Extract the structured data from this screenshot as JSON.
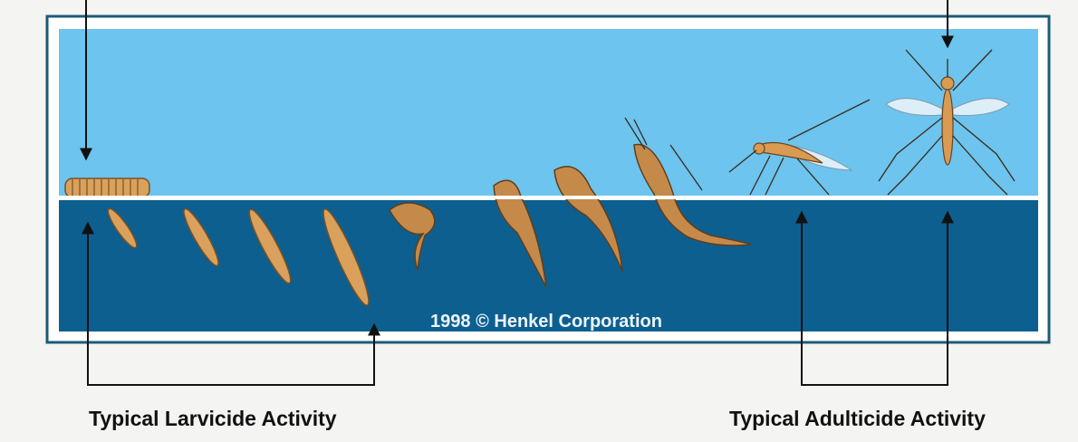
{
  "copyright": "1998 © Henkel Corporation",
  "labels": {
    "larvicide": "Typical Larvicide Activity",
    "adulticide": "Typical Adulticide Activity"
  }
}
